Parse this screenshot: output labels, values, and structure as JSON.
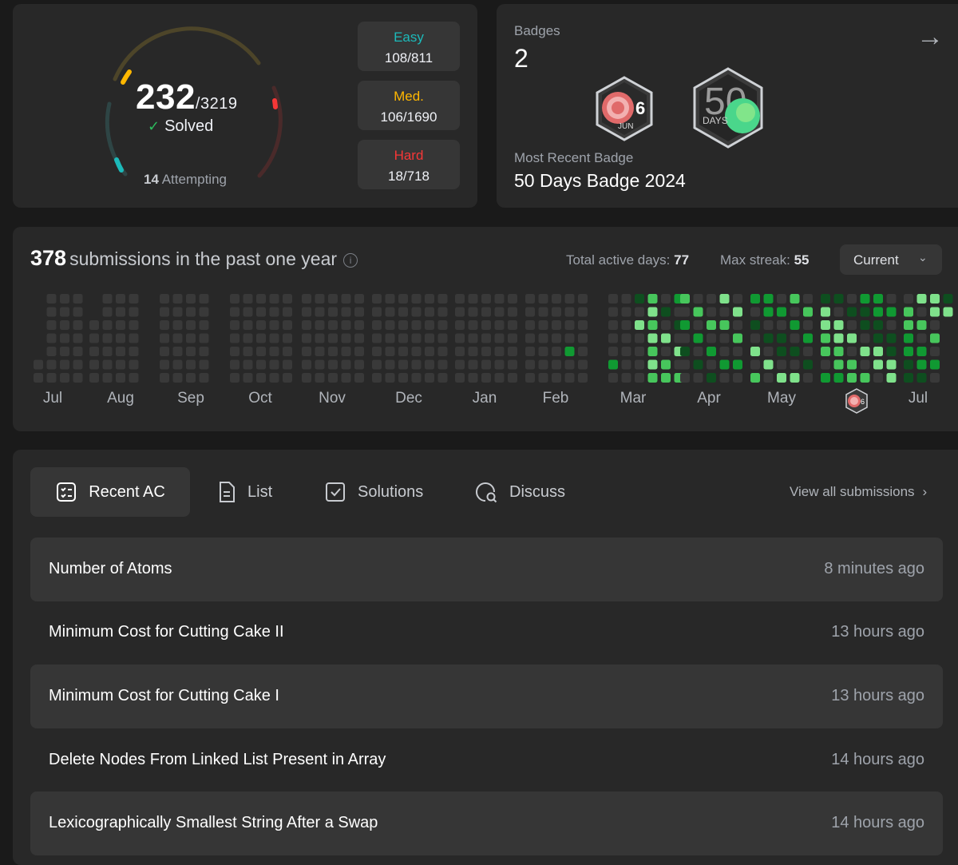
{
  "solved": {
    "count": "232",
    "total": "/3219",
    "solved_label": "Solved",
    "attempting_count": "14",
    "attempting_label": "Attempting",
    "difficulties": [
      {
        "label": "Easy",
        "value": "108/811",
        "color": "#1cbaba"
      },
      {
        "label": "Med.",
        "value": "106/1690",
        "color": "#ffb700"
      },
      {
        "label": "Hard",
        "value": "18/718",
        "color": "#f63737"
      }
    ]
  },
  "badges": {
    "title": "Badges",
    "count": "2",
    "recent_label": "Most Recent Badge",
    "recent_name": "50 Days Badge 2024",
    "jun_badge": {
      "number": "6",
      "month": "JUN"
    },
    "days_badge": {
      "number": "50",
      "label": "DAYS"
    },
    "arrow_icon": "arrow-right-icon"
  },
  "calendar": {
    "count": "378",
    "title": "submissions in the past one year",
    "active_label": "Total active days:",
    "active_value": "77",
    "streak_label": "Max streak:",
    "streak_value": "55",
    "range": "Current",
    "months": [
      "Jul",
      "Aug",
      "Sep",
      "Oct",
      "Nov",
      "Dec",
      "Jan",
      "Feb",
      "Mar",
      "Apr",
      "May",
      "Jul"
    ],
    "colors": {
      "empty": "#393939",
      "level1": "#0e4e1f",
      "level2": "#109932",
      "level3": "#47c65c",
      "level4": "#7fe18b"
    }
  },
  "tabs": {
    "recent": "Recent AC",
    "list": "List",
    "solutions": "Solutions",
    "discuss": "Discuss",
    "view_all": "View all submissions"
  },
  "submissions": [
    {
      "name": "Number of Atoms",
      "time": "8 minutes ago"
    },
    {
      "name": "Minimum Cost for Cutting Cake II",
      "time": "13 hours ago"
    },
    {
      "name": "Minimum Cost for Cutting Cake I",
      "time": "13 hours ago"
    },
    {
      "name": "Delete Nodes From Linked List Present in Array",
      "time": "14 hours ago"
    },
    {
      "name": "Lexicographically Smallest String After a Swap",
      "time": "14 hours ago"
    }
  ]
}
